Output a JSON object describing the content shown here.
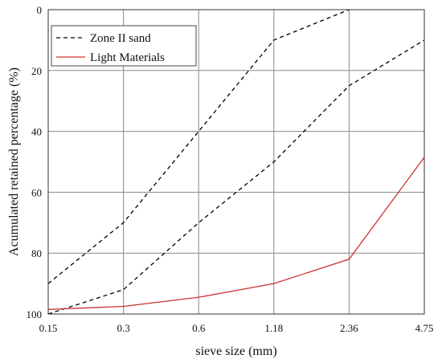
{
  "chart_data": {
    "type": "line",
    "title": "",
    "xlabel": "sieve size (mm)",
    "ylabel": "Acumulated retained percentage (%)",
    "x": [
      "0.15",
      "0.3",
      "0.6",
      "1.18",
      "2.36",
      "4.75"
    ],
    "ylim": [
      0,
      100
    ],
    "y_inverted": true,
    "yticks": [
      "0",
      "20",
      "40",
      "60",
      "80",
      "100"
    ],
    "grid": true,
    "legend_position": "top-left",
    "series": [
      {
        "name": "Zone II sand",
        "style": "dashed",
        "color": "#000000",
        "values": [
          90,
          70,
          40,
          10,
          0,
          null
        ]
      },
      {
        "name": "",
        "legend_hidden": true,
        "style": "dashed",
        "color": "#000000",
        "values": [
          100,
          92,
          70,
          50,
          25,
          10
        ]
      },
      {
        "name": "Light Materials",
        "style": "solid",
        "color": "#cc3333",
        "values": [
          98.5,
          97.5,
          94.5,
          90,
          82,
          48.5
        ]
      }
    ]
  }
}
